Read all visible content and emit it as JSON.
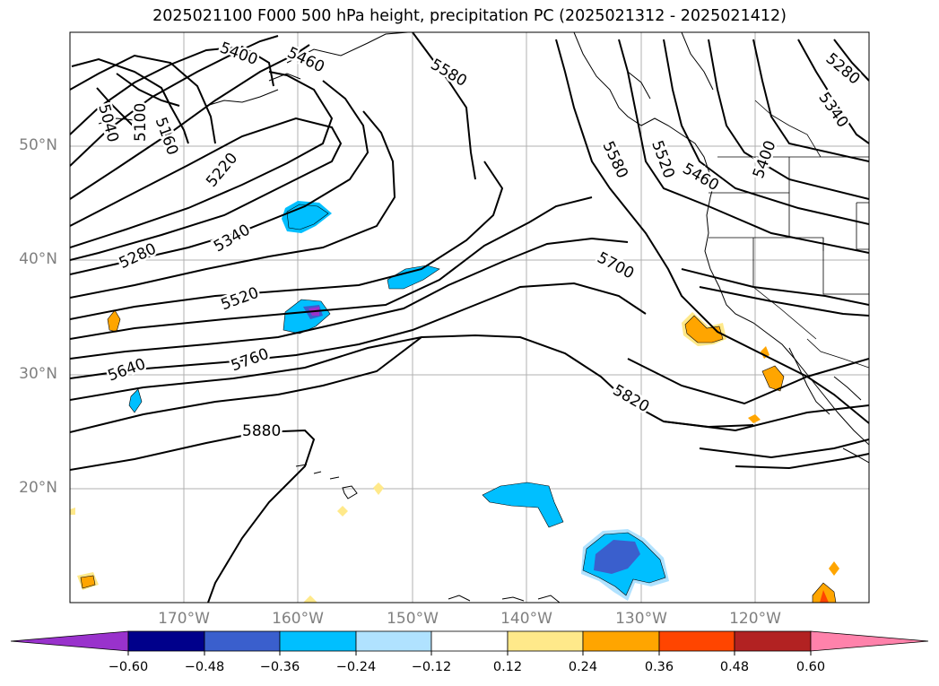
{
  "title": "2025021100 F000 500 hPa height, precipitation PC (2025021312 - 2025021412)",
  "lat_labels": [
    "50°N",
    "40°N",
    "30°N",
    "20°N"
  ],
  "lon_labels": [
    "170°W",
    "160°W",
    "150°W",
    "140°W",
    "130°W",
    "120°W"
  ],
  "contour_labels": [
    "5040",
    "5100",
    "5160",
    "5220",
    "5280",
    "5340",
    "5400",
    "5460",
    "5520",
    "5580",
    "5640",
    "5700",
    "5760",
    "5820",
    "5880",
    "5580",
    "5520",
    "5460",
    "5400",
    "5340",
    "5280"
  ],
  "colorbar": {
    "labels": [
      "−0.60",
      "−0.48",
      "−0.36",
      "−0.24",
      "−0.12",
      "0.12",
      "0.24",
      "0.36",
      "0.48",
      "0.60"
    ],
    "colors": [
      "#9932cc",
      "#00008b",
      "#3a5fcd",
      "#00bfff",
      "#b0e2ff",
      "#ffffff",
      "#ffe98a",
      "#ffa500",
      "#ff4500",
      "#b22222",
      "#ff82ab"
    ]
  },
  "colors": {
    "contour": "#000000",
    "grid": "#b0b0b0",
    "axis_label": "#808080"
  }
}
